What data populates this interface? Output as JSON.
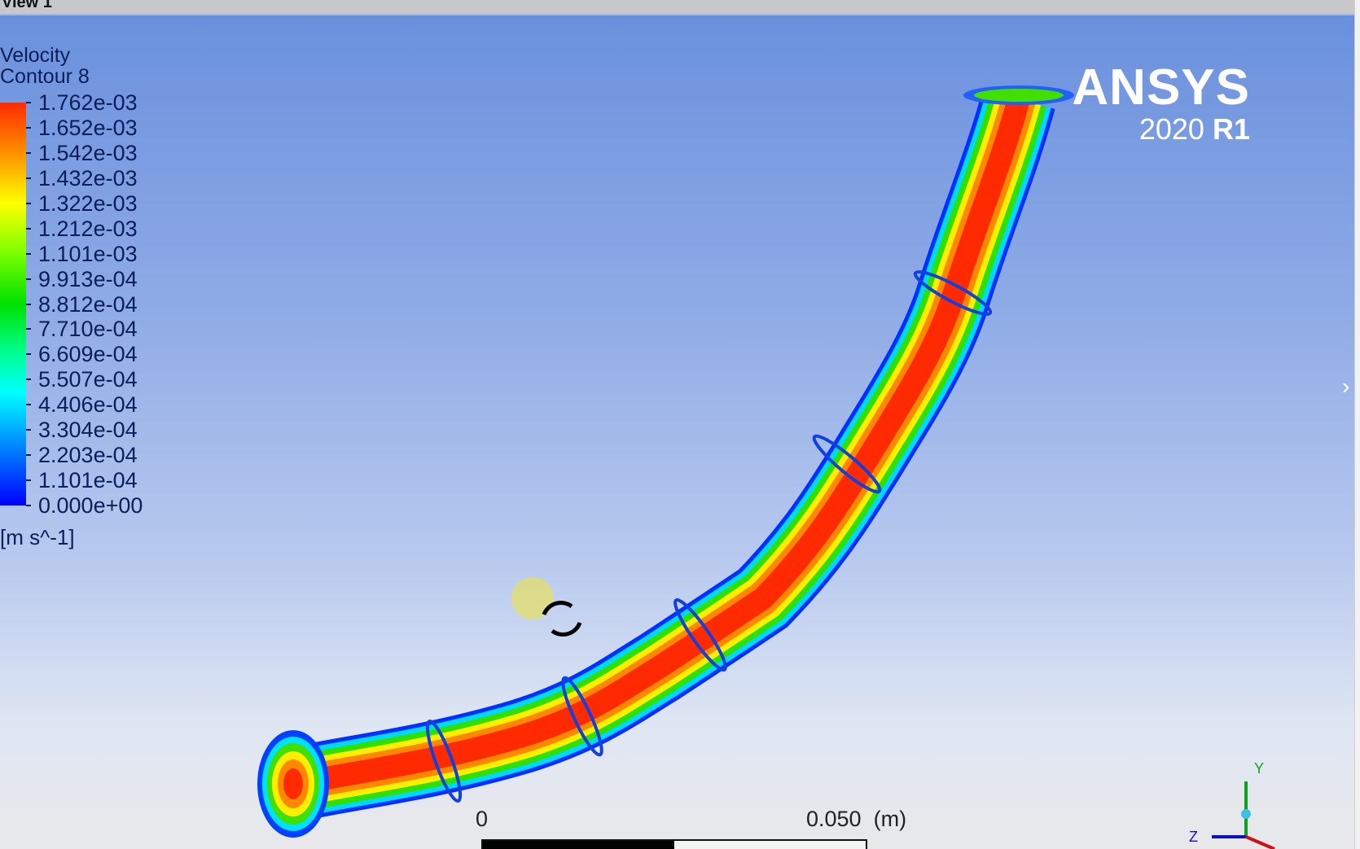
{
  "window": {
    "title": "View 1"
  },
  "legend": {
    "variable": "Velocity",
    "name": "Contour 8",
    "levels": [
      "1.762e-03",
      "1.652e-03",
      "1.542e-03",
      "1.432e-03",
      "1.322e-03",
      "1.212e-03",
      "1.101e-03",
      "9.913e-04",
      "8.812e-04",
      "7.710e-04",
      "6.609e-04",
      "5.507e-04",
      "4.406e-04",
      "3.304e-04",
      "2.203e-04",
      "1.101e-04",
      "0.000e+00"
    ],
    "units": "[m s^-1]"
  },
  "logo": {
    "brand": "ANSYS",
    "version_year": "2020",
    "version_release": "R1"
  },
  "scale": {
    "start": "0",
    "end": "0.050",
    "unit": "(m)"
  },
  "axes": {
    "y": "Y",
    "z": "Z"
  },
  "colors": {
    "max": "#ff2a00",
    "min": "#0000ff",
    "background_top": "#6a90dd"
  },
  "icons": {
    "cursor": "rotate-icon",
    "panel": "chevron-right-icon"
  }
}
